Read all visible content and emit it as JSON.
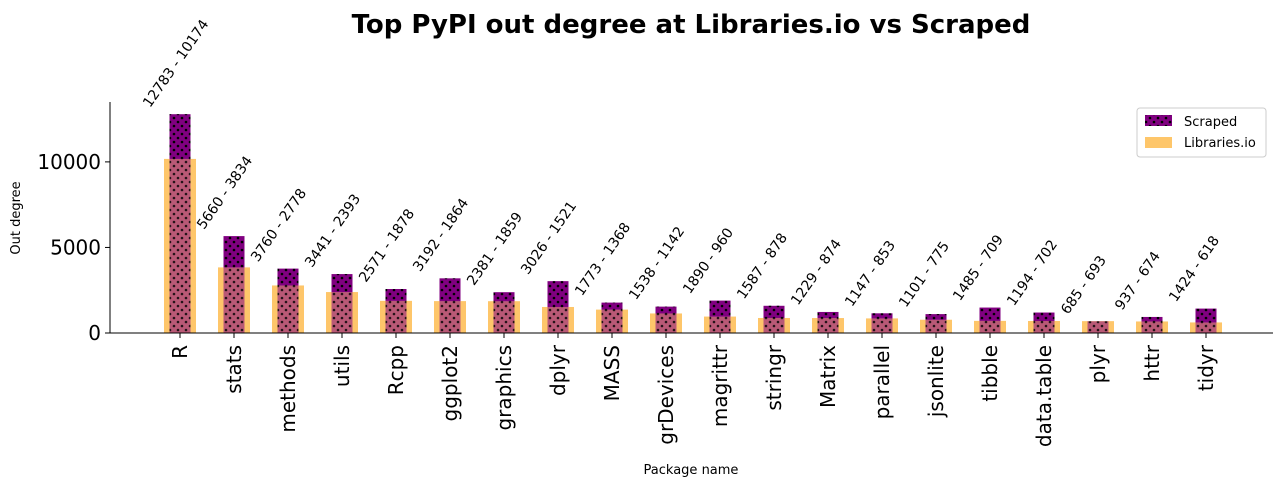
{
  "chart_data": {
    "type": "bar",
    "title": "Top PyPI out degree at Libraries.io vs Scraped",
    "xlabel": "Package name",
    "ylabel": "Out degree",
    "ylim": [
      0,
      13500
    ],
    "yticks": [
      0,
      5000,
      10000
    ],
    "categories": [
      "R",
      "stats",
      "methods",
      "utils",
      "Rcpp",
      "ggplot2",
      "graphics",
      "dplyr",
      "MASS",
      "grDevices",
      "magrittr",
      "stringr",
      "Matrix",
      "parallel",
      "jsonlite",
      "tibble",
      "data.table",
      "plyr",
      "httr",
      "tidyr"
    ],
    "series": [
      {
        "name": "Scraped",
        "color": "#800080",
        "values": [
          12783,
          5660,
          3760,
          3441,
          2571,
          3192,
          2381,
          3026,
          1773,
          1538,
          1890,
          1587,
          1229,
          1147,
          1101,
          1485,
          1194,
          685,
          937,
          1424
        ]
      },
      {
        "name": "Libraries.io",
        "color": "#FDB338",
        "values": [
          10174,
          3834,
          2778,
          2393,
          1878,
          1864,
          1859,
          1521,
          1368,
          1142,
          960,
          878,
          874,
          853,
          775,
          709,
          702,
          693,
          674,
          618
        ]
      }
    ],
    "data_labels": [
      "12783 - 10174",
      "5660 - 3834",
      "3760 - 2778",
      "3441 - 2393",
      "2571 - 1878",
      "3192 - 1864",
      "2381 - 1859",
      "3026 - 1521",
      "1773 - 1368",
      "1538 - 1142",
      "1890 - 960",
      "1587 - 878",
      "1229 - 874",
      "1147 - 853",
      "1101 - 775",
      "1485 - 709",
      "1194 - 702",
      "685 - 693",
      "937 - 674",
      "1424 - 618"
    ],
    "legend_position": "top-right",
    "grid": false
  }
}
